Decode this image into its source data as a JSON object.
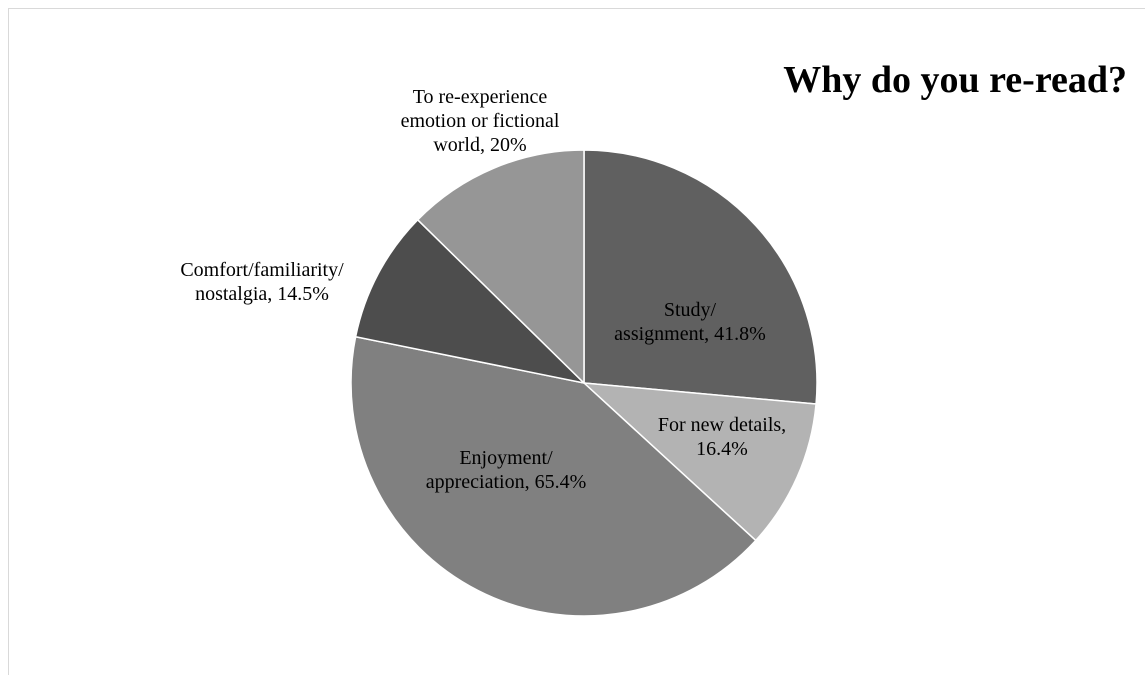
{
  "chart_data": {
    "type": "pie",
    "title": "Why do you re-read?",
    "slices": [
      {
        "name": "Study/ assignment",
        "value": 41.8,
        "color": "#606060",
        "label_lines": [
          "Study/",
          "assignment, 41.8%"
        ]
      },
      {
        "name": "For new details",
        "value": 16.4,
        "color": "#b3b3b3",
        "label_lines": [
          "For new details,",
          "16.4%"
        ]
      },
      {
        "name": "Enjoyment/ appreciation",
        "value": 65.4,
        "color": "#808080",
        "label_lines": [
          "Enjoyment/",
          "appreciation, 65.4%"
        ]
      },
      {
        "name": "Comfort/familiarity/ nostalgia",
        "value": 14.5,
        "color": "#4d4d4d",
        "label_lines": [
          "Comfort/familiarity/",
          "nostalgia, 14.5%"
        ]
      },
      {
        "name": "To re-experience emotion or fictional world",
        "value": 20,
        "color": "#969696",
        "label_lines": [
          "To re-experience",
          "emotion or fictional",
          "world, 20%"
        ]
      }
    ],
    "start_angle_deg": 0,
    "direction": "clockwise",
    "legend": "none",
    "slice_border_color": "#ffffff"
  }
}
